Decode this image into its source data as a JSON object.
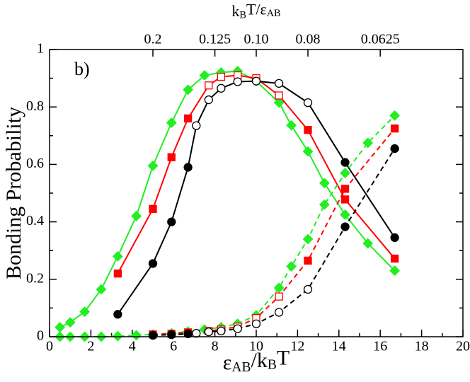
{
  "chart_data": {
    "type": "line",
    "annotation": "b)",
    "xlabel": [
      {
        "text": "ε",
        "sub": false
      },
      {
        "text": "AB",
        "sub": true
      },
      {
        "text": "/k",
        "sub": false
      },
      {
        "text": "B",
        "sub": true
      },
      {
        "text": "T",
        "sub": false
      }
    ],
    "x2label": [
      {
        "text": "k",
        "sub": false
      },
      {
        "text": "B",
        "sub": true
      },
      {
        "text": "T/ε",
        "sub": false
      },
      {
        "text": "AB",
        "sub": true
      }
    ],
    "ylabel": "Bonding Probability",
    "xlim": [
      0,
      20
    ],
    "xticks": [
      0,
      2,
      4,
      6,
      8,
      10,
      12,
      14,
      16,
      18,
      20
    ],
    "ylim": [
      0,
      1
    ],
    "yticks": [
      0,
      0.2,
      0.4,
      0.6,
      0.8,
      1
    ],
    "x2scale": "reciprocal",
    "x2ticks": [
      0.2,
      0.125,
      {
        "value": 0.1,
        "label": "0.10"
      },
      0.08,
      0.0625
    ],
    "series": [
      {
        "color": "#22ee22",
        "marker": "diamond",
        "dash": false,
        "x": [
          0.5,
          1.0,
          1.7,
          2.5,
          3.3,
          4.2,
          5.0,
          5.9,
          6.7,
          7.5,
          8.3,
          9.1,
          10.0,
          11.1,
          11.7,
          12.5,
          13.3,
          14.3,
          15.4,
          16.7
        ],
        "values": [
          0.033,
          0.05,
          0.087,
          0.165,
          0.28,
          0.42,
          0.595,
          0.745,
          0.86,
          0.91,
          0.92,
          0.925,
          0.89,
          0.815,
          0.736,
          0.645,
          0.535,
          0.425,
          0.325,
          0.23
        ],
        "open": [
          false,
          false,
          false,
          false,
          false,
          false,
          false,
          false,
          false,
          false,
          false,
          false,
          false,
          false,
          false,
          false,
          false,
          false,
          false,
          false
        ]
      },
      {
        "color": "#ff0000",
        "marker": "square",
        "dash": false,
        "x": [
          3.3,
          5.0,
          5.9,
          6.7,
          7.7,
          8.3,
          9.1,
          10.0,
          11.1,
          12.5,
          14.3,
          16.7
        ],
        "values": [
          0.22,
          0.445,
          0.625,
          0.76,
          0.875,
          0.905,
          0.91,
          0.9,
          0.84,
          0.72,
          0.478,
          0.272
        ],
        "open": [
          false,
          false,
          false,
          false,
          true,
          true,
          true,
          true,
          true,
          false,
          false,
          false
        ]
      },
      {
        "color": "#000000",
        "marker": "circle",
        "dash": false,
        "x": [
          3.3,
          5.0,
          5.9,
          6.7,
          7.1,
          7.7,
          8.3,
          9.1,
          10.0,
          11.1,
          12.5,
          14.3,
          16.7
        ],
        "values": [
          0.078,
          0.255,
          0.4,
          0.59,
          0.735,
          0.825,
          0.865,
          0.888,
          0.89,
          0.882,
          0.815,
          0.607,
          0.345
        ],
        "open": [
          false,
          false,
          false,
          false,
          true,
          true,
          true,
          true,
          true,
          true,
          true,
          false,
          false
        ]
      },
      {
        "color": "#22ee22",
        "marker": "diamond",
        "dash": true,
        "x": [
          0.5,
          1.0,
          1.7,
          2.5,
          3.3,
          4.2,
          5.0,
          5.9,
          6.7,
          7.5,
          8.3,
          9.1,
          10.0,
          11.1,
          11.7,
          12.5,
          13.3,
          14.3,
          15.4,
          16.7
        ],
        "values": [
          0,
          0,
          0,
          0,
          0.002,
          0.005,
          0.008,
          0.012,
          0.018,
          0.025,
          0.033,
          0.045,
          0.075,
          0.17,
          0.245,
          0.34,
          0.46,
          0.57,
          0.675,
          0.77
        ],
        "open": [
          false,
          false,
          false,
          false,
          false,
          false,
          false,
          false,
          false,
          false,
          false,
          false,
          false,
          false,
          false,
          false,
          false,
          false,
          false,
          false
        ]
      },
      {
        "color": "#ff0000",
        "marker": "square",
        "dash": true,
        "x": [
          5.0,
          5.9,
          6.7,
          7.7,
          8.3,
          9.1,
          10.0,
          11.1,
          12.5,
          14.3,
          16.7
        ],
        "values": [
          0.008,
          0.01,
          0.015,
          0.02,
          0.025,
          0.035,
          0.065,
          0.14,
          0.265,
          0.515,
          0.725
        ],
        "open": [
          false,
          false,
          false,
          true,
          true,
          true,
          true,
          true,
          false,
          false,
          false
        ]
      },
      {
        "color": "#000000",
        "marker": "circle",
        "dash": true,
        "x": [
          5.0,
          5.9,
          6.7,
          7.1,
          7.7,
          8.3,
          9.1,
          10.0,
          11.1,
          12.5,
          14.3,
          16.7
        ],
        "values": [
          0.005,
          0.007,
          0.01,
          0.012,
          0.017,
          0.02,
          0.028,
          0.045,
          0.085,
          0.165,
          0.383,
          0.655
        ],
        "open": [
          false,
          false,
          false,
          true,
          true,
          true,
          true,
          true,
          true,
          true,
          false,
          false
        ]
      }
    ]
  }
}
